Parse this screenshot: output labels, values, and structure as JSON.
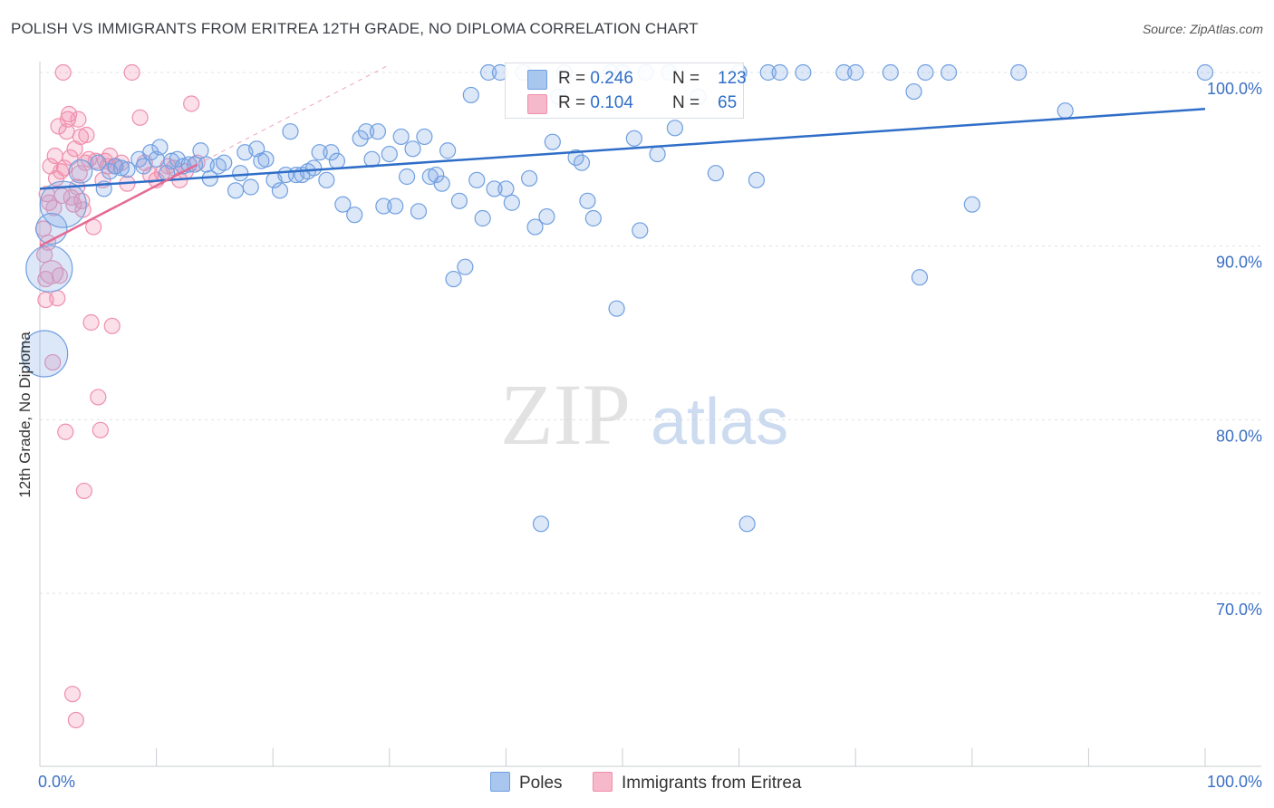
{
  "title": "POLISH VS IMMIGRANTS FROM ERITREA 12TH GRADE, NO DIPLOMA CORRELATION CHART",
  "source": "Source: ZipAtlas.com",
  "watermark": {
    "zip": "ZIP",
    "atlas": "atlas"
  },
  "legend": {
    "r_label": "R =",
    "n_label": "N =",
    "entries": [
      {
        "name": "Poles",
        "r": "0.246",
        "n": "123",
        "fill": "#a9c6ee",
        "stroke": "#6f9fe0"
      },
      {
        "name": "Immigrants from Eritrea",
        "r": "0.104",
        "n": "65",
        "fill": "#f6b8cb",
        "stroke": "#ef8fab"
      }
    ]
  },
  "chart_data": {
    "type": "scatter",
    "xlabel": "",
    "ylabel": "12th Grade, No Diploma",
    "xlim": [
      0,
      100
    ],
    "ylim": [
      61.5,
      101.5
    ],
    "x_tick_labels": [
      "0.0%",
      "100.0%"
    ],
    "y_ticks": [
      100,
      90,
      80,
      70
    ],
    "y_tick_labels": [
      "100.0%",
      "90.0%",
      "80.0%",
      "70.0%"
    ],
    "grid": true,
    "legend_position": "top-center",
    "colors": {
      "poles": "#2f6ec8",
      "eritrea": "#e46a93",
      "tick_label": "#3a6fc4"
    },
    "series": [
      {
        "name": "Poles",
        "trend": {
          "x": [
            0,
            100
          ],
          "y": [
            93.3,
            97.9
          ]
        },
        "points": [
          {
            "x": 0.4,
            "y": 83.8,
            "s": 3
          },
          {
            "x": 0.8,
            "y": 88.7,
            "s": 3
          },
          {
            "x": 1.0,
            "y": 91.0,
            "s": 2
          },
          {
            "x": 2.0,
            "y": 92.4,
            "s": 3
          },
          {
            "x": 3.5,
            "y": 94.3,
            "s": 1.5
          },
          {
            "x": 5.0,
            "y": 94.8
          },
          {
            "x": 5.5,
            "y": 93.3
          },
          {
            "x": 6.0,
            "y": 94.3
          },
          {
            "x": 6.5,
            "y": 94.6
          },
          {
            "x": 7.0,
            "y": 94.5
          },
          {
            "x": 7.5,
            "y": 94.4
          },
          {
            "x": 8.5,
            "y": 95.0
          },
          {
            "x": 8.9,
            "y": 94.6
          },
          {
            "x": 9.5,
            "y": 95.4
          },
          {
            "x": 10.0,
            "y": 95.0
          },
          {
            "x": 10.3,
            "y": 95.7
          },
          {
            "x": 10.9,
            "y": 94.2
          },
          {
            "x": 11.3,
            "y": 94.9
          },
          {
            "x": 11.8,
            "y": 95.0
          },
          {
            "x": 12.3,
            "y": 94.6
          },
          {
            "x": 12.8,
            "y": 94.7
          },
          {
            "x": 13.3,
            "y": 94.7
          },
          {
            "x": 13.8,
            "y": 95.5
          },
          {
            "x": 14.3,
            "y": 94.7
          },
          {
            "x": 14.6,
            "y": 93.9
          },
          {
            "x": 15.3,
            "y": 94.6
          },
          {
            "x": 15.8,
            "y": 94.8
          },
          {
            "x": 16.8,
            "y": 93.2
          },
          {
            "x": 17.2,
            "y": 94.2
          },
          {
            "x": 17.6,
            "y": 95.4
          },
          {
            "x": 18.1,
            "y": 93.4
          },
          {
            "x": 18.6,
            "y": 95.6
          },
          {
            "x": 19.0,
            "y": 94.9
          },
          {
            "x": 19.4,
            "y": 95.0
          },
          {
            "x": 20.1,
            "y": 93.8
          },
          {
            "x": 20.6,
            "y": 93.2
          },
          {
            "x": 21.1,
            "y": 94.1
          },
          {
            "x": 21.5,
            "y": 96.6
          },
          {
            "x": 22.0,
            "y": 94.1
          },
          {
            "x": 22.5,
            "y": 94.1
          },
          {
            "x": 23.0,
            "y": 94.3
          },
          {
            "x": 23.5,
            "y": 94.5
          },
          {
            "x": 24.0,
            "y": 95.4
          },
          {
            "x": 24.6,
            "y": 93.8
          },
          {
            "x": 25.0,
            "y": 95.4
          },
          {
            "x": 25.5,
            "y": 94.9
          },
          {
            "x": 26.0,
            "y": 92.4
          },
          {
            "x": 27.0,
            "y": 91.8
          },
          {
            "x": 27.5,
            "y": 96.2
          },
          {
            "x": 28.0,
            "y": 96.6
          },
          {
            "x": 28.5,
            "y": 95.0
          },
          {
            "x": 29.0,
            "y": 96.6
          },
          {
            "x": 29.5,
            "y": 92.3
          },
          {
            "x": 30.0,
            "y": 95.3
          },
          {
            "x": 30.5,
            "y": 92.3
          },
          {
            "x": 31.0,
            "y": 96.3
          },
          {
            "x": 31.5,
            "y": 94.0
          },
          {
            "x": 32.0,
            "y": 95.6
          },
          {
            "x": 32.5,
            "y": 92.0
          },
          {
            "x": 33.0,
            "y": 96.3
          },
          {
            "x": 33.5,
            "y": 94.0
          },
          {
            "x": 34.0,
            "y": 94.1
          },
          {
            "x": 34.5,
            "y": 93.6
          },
          {
            "x": 35.0,
            "y": 95.5
          },
          {
            "x": 35.5,
            "y": 88.1
          },
          {
            "x": 36.0,
            "y": 92.6
          },
          {
            "x": 36.5,
            "y": 88.8
          },
          {
            "x": 37.0,
            "y": 98.7
          },
          {
            "x": 37.5,
            "y": 93.8
          },
          {
            "x": 38.0,
            "y": 91.6
          },
          {
            "x": 38.5,
            "y": 100.0
          },
          {
            "x": 39.0,
            "y": 93.3
          },
          {
            "x": 39.5,
            "y": 100.0
          },
          {
            "x": 40.0,
            "y": 93.3
          },
          {
            "x": 40.5,
            "y": 92.5
          },
          {
            "x": 41.5,
            "y": 100.0
          },
          {
            "x": 42.0,
            "y": 93.9
          },
          {
            "x": 42.5,
            "y": 91.1
          },
          {
            "x": 43.0,
            "y": 74.0
          },
          {
            "x": 43.5,
            "y": 91.7
          },
          {
            "x": 44.0,
            "y": 96.0
          },
          {
            "x": 44.5,
            "y": 98.6
          },
          {
            "x": 45.0,
            "y": 100.0
          },
          {
            "x": 46.0,
            "y": 95.1
          },
          {
            "x": 46.5,
            "y": 94.8
          },
          {
            "x": 47.0,
            "y": 92.6
          },
          {
            "x": 47.5,
            "y": 91.6
          },
          {
            "x": 49.0,
            "y": 100.0
          },
          {
            "x": 49.5,
            "y": 86.4
          },
          {
            "x": 50.0,
            "y": 100.0
          },
          {
            "x": 51.0,
            "y": 96.2
          },
          {
            "x": 51.5,
            "y": 90.9
          },
          {
            "x": 52.0,
            "y": 100.0
          },
          {
            "x": 53.0,
            "y": 95.3
          },
          {
            "x": 54.0,
            "y": 100.0
          },
          {
            "x": 54.5,
            "y": 96.8
          },
          {
            "x": 56.5,
            "y": 98.6
          },
          {
            "x": 58.0,
            "y": 94.2
          },
          {
            "x": 60.0,
            "y": 100.0
          },
          {
            "x": 60.7,
            "y": 74.0
          },
          {
            "x": 61.5,
            "y": 93.8
          },
          {
            "x": 62.5,
            "y": 100.0
          },
          {
            "x": 63.5,
            "y": 100.0
          },
          {
            "x": 65.5,
            "y": 100.0
          },
          {
            "x": 69.0,
            "y": 100.0
          },
          {
            "x": 70.0,
            "y": 100.0
          },
          {
            "x": 73.0,
            "y": 100.0
          },
          {
            "x": 75.0,
            "y": 98.9
          },
          {
            "x": 75.5,
            "y": 88.2
          },
          {
            "x": 76.0,
            "y": 100.0
          },
          {
            "x": 78.0,
            "y": 100.0
          },
          {
            "x": 80.0,
            "y": 92.4
          },
          {
            "x": 84.0,
            "y": 100.0
          },
          {
            "x": 88.0,
            "y": 97.8
          },
          {
            "x": 100.0,
            "y": 100.0
          }
        ]
      },
      {
        "name": "Immigrants from Eritrea",
        "trend": {
          "x": [
            0,
            13.5
          ],
          "y": [
            90.0,
            94.7
          ]
        },
        "points": [
          {
            "x": 0.3,
            "y": 91.0
          },
          {
            "x": 0.4,
            "y": 89.5
          },
          {
            "x": 0.5,
            "y": 88.1
          },
          {
            "x": 0.5,
            "y": 86.9
          },
          {
            "x": 0.6,
            "y": 93.0
          },
          {
            "x": 0.7,
            "y": 90.2
          },
          {
            "x": 0.8,
            "y": 92.5
          },
          {
            "x": 0.9,
            "y": 94.6
          },
          {
            "x": 1.0,
            "y": 88.5,
            "s": 1.5
          },
          {
            "x": 1.1,
            "y": 83.3
          },
          {
            "x": 1.2,
            "y": 92.2
          },
          {
            "x": 1.3,
            "y": 95.2
          },
          {
            "x": 1.4,
            "y": 93.9
          },
          {
            "x": 1.5,
            "y": 87.0
          },
          {
            "x": 1.6,
            "y": 96.9
          },
          {
            "x": 1.7,
            "y": 88.3
          },
          {
            "x": 1.8,
            "y": 94.3
          },
          {
            "x": 1.9,
            "y": 92.9
          },
          {
            "x": 2.0,
            "y": 100.0
          },
          {
            "x": 2.1,
            "y": 94.5
          },
          {
            "x": 2.2,
            "y": 79.3
          },
          {
            "x": 2.3,
            "y": 96.6
          },
          {
            "x": 2.4,
            "y": 97.3
          },
          {
            "x": 2.5,
            "y": 97.6
          },
          {
            "x": 2.6,
            "y": 95.1
          },
          {
            "x": 2.7,
            "y": 92.8
          },
          {
            "x": 2.8,
            "y": 64.2
          },
          {
            "x": 2.9,
            "y": 92.4
          },
          {
            "x": 3.0,
            "y": 95.6
          },
          {
            "x": 3.1,
            "y": 62.7
          },
          {
            "x": 3.2,
            "y": 93.4
          },
          {
            "x": 3.3,
            "y": 97.3
          },
          {
            "x": 3.4,
            "y": 94.2
          },
          {
            "x": 3.5,
            "y": 96.3
          },
          {
            "x": 3.6,
            "y": 92.6
          },
          {
            "x": 3.7,
            "y": 92.1
          },
          {
            "x": 3.8,
            "y": 75.9
          },
          {
            "x": 3.9,
            "y": 94.8
          },
          {
            "x": 4.0,
            "y": 96.4
          },
          {
            "x": 4.2,
            "y": 95.0
          },
          {
            "x": 4.4,
            "y": 85.6
          },
          {
            "x": 4.6,
            "y": 91.1
          },
          {
            "x": 4.8,
            "y": 94.9
          },
          {
            "x": 5.0,
            "y": 81.3
          },
          {
            "x": 5.2,
            "y": 79.4
          },
          {
            "x": 5.4,
            "y": 93.8
          },
          {
            "x": 5.6,
            "y": 94.9
          },
          {
            "x": 5.8,
            "y": 94.6
          },
          {
            "x": 6.0,
            "y": 95.2
          },
          {
            "x": 6.2,
            "y": 85.4
          },
          {
            "x": 6.4,
            "y": 94.6
          },
          {
            "x": 7.0,
            "y": 94.8
          },
          {
            "x": 7.5,
            "y": 93.6
          },
          {
            "x": 7.9,
            "y": 100.0
          },
          {
            "x": 8.6,
            "y": 97.4
          },
          {
            "x": 9.0,
            "y": 94.8
          },
          {
            "x": 9.5,
            "y": 94.1
          },
          {
            "x": 10.0,
            "y": 93.8
          },
          {
            "x": 10.5,
            "y": 94.2
          },
          {
            "x": 11.0,
            "y": 94.6
          },
          {
            "x": 11.5,
            "y": 94.5
          },
          {
            "x": 12.0,
            "y": 93.8
          },
          {
            "x": 12.5,
            "y": 94.3
          },
          {
            "x": 13.0,
            "y": 98.2
          },
          {
            "x": 13.5,
            "y": 94.8
          }
        ]
      }
    ]
  }
}
